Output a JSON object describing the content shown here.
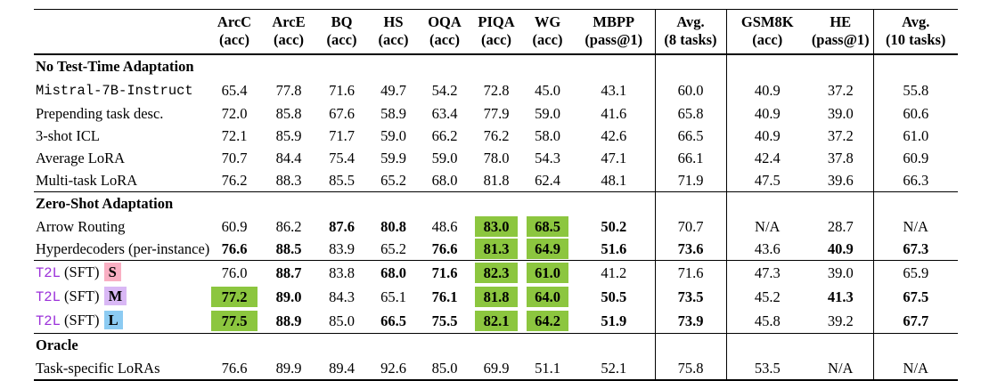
{
  "colors": {
    "highlight_green": "#8CC63F",
    "t2l_accent": "#9B30D9",
    "badge_s_bg": "#F9AFC3",
    "badge_m_bg": "#D9B8F5",
    "badge_l_bg": "#8CCBF2",
    "rule": "#000000"
  },
  "header": {
    "columns": [
      {
        "label": "ArcC",
        "sub": "(acc)"
      },
      {
        "label": "ArcE",
        "sub": "(acc)"
      },
      {
        "label": "BQ",
        "sub": "(acc)"
      },
      {
        "label": "HS",
        "sub": "(acc)"
      },
      {
        "label": "OQA",
        "sub": "(acc)"
      },
      {
        "label": "PIQA",
        "sub": "(acc)"
      },
      {
        "label": "WG",
        "sub": "(acc)"
      },
      {
        "label": "MBPP",
        "sub": "(pass@1)"
      },
      {
        "label": "Avg.",
        "sub": "(8 tasks)",
        "sep_left": true
      },
      {
        "label": "GSM8K",
        "sub": "(acc)",
        "sep_left": true
      },
      {
        "label": "HE",
        "sub": "(pass@1)"
      },
      {
        "label": "Avg.",
        "sub": "(10 tasks)",
        "sep_left": true
      }
    ]
  },
  "cell_style_legend": {
    "b": "bold",
    "hl": "green-highlight-bold"
  },
  "groups": [
    {
      "header": "No Test-Time Adaptation",
      "rows": [
        {
          "label": {
            "text": "Mistral-7B-Instruct",
            "mono": true
          },
          "cells": [
            [
              "65.4"
            ],
            [
              "77.8"
            ],
            [
              "71.6"
            ],
            [
              "49.7"
            ],
            [
              "54.2"
            ],
            [
              "72.8"
            ],
            [
              "45.0"
            ],
            [
              "43.1"
            ],
            [
              "60.0"
            ],
            [
              "40.9"
            ],
            [
              "37.2"
            ],
            [
              "55.8"
            ]
          ]
        },
        {
          "label": {
            "text": "Prepending task desc."
          },
          "cells": [
            [
              "72.0"
            ],
            [
              "85.8"
            ],
            [
              "67.6"
            ],
            [
              "58.9"
            ],
            [
              "63.4"
            ],
            [
              "77.9"
            ],
            [
              "59.0"
            ],
            [
              "41.6"
            ],
            [
              "65.8"
            ],
            [
              "40.9"
            ],
            [
              "39.0"
            ],
            [
              "60.6"
            ]
          ]
        },
        {
          "label": {
            "text": "3-shot ICL"
          },
          "cells": [
            [
              "72.1"
            ],
            [
              "85.9"
            ],
            [
              "71.7"
            ],
            [
              "59.0"
            ],
            [
              "66.2"
            ],
            [
              "76.2"
            ],
            [
              "58.0"
            ],
            [
              "42.6"
            ],
            [
              "66.5"
            ],
            [
              "40.9"
            ],
            [
              "37.2"
            ],
            [
              "61.0"
            ]
          ]
        },
        {
          "label": {
            "text": "Average LoRA"
          },
          "cells": [
            [
              "70.7"
            ],
            [
              "84.4"
            ],
            [
              "75.4"
            ],
            [
              "59.9"
            ],
            [
              "59.0"
            ],
            [
              "78.0"
            ],
            [
              "54.3"
            ],
            [
              "47.1"
            ],
            [
              "66.1"
            ],
            [
              "42.4"
            ],
            [
              "37.8"
            ],
            [
              "60.9"
            ]
          ]
        },
        {
          "label": {
            "text": "Multi-task LoRA"
          },
          "cells": [
            [
              "76.2"
            ],
            [
              "88.3"
            ],
            [
              "85.5"
            ],
            [
              "65.2"
            ],
            [
              "68.0"
            ],
            [
              "81.8"
            ],
            [
              "62.4"
            ],
            [
              "48.1"
            ],
            [
              "71.9"
            ],
            [
              "47.5"
            ],
            [
              "39.6"
            ],
            [
              "66.3"
            ]
          ]
        }
      ]
    },
    {
      "header": "Zero-Shot Adaptation",
      "rows": [
        {
          "label": {
            "text": "Arrow Routing"
          },
          "cells": [
            [
              "60.9"
            ],
            [
              "86.2"
            ],
            [
              "87.6",
              "b"
            ],
            [
              "80.8",
              "b"
            ],
            [
              "48.6"
            ],
            [
              "83.0",
              "hl"
            ],
            [
              "68.5",
              "hl"
            ],
            [
              "50.2",
              "b"
            ],
            [
              "70.7"
            ],
            [
              "N/A"
            ],
            [
              "28.7"
            ],
            [
              "N/A"
            ]
          ]
        },
        {
          "label": {
            "text": "Hyperdecoders (per-instance)"
          },
          "cells": [
            [
              "76.6",
              "b"
            ],
            [
              "88.5",
              "b"
            ],
            [
              "83.9"
            ],
            [
              "65.2"
            ],
            [
              "76.6",
              "b"
            ],
            [
              "81.3",
              "hl"
            ],
            [
              "64.9",
              "hl"
            ],
            [
              "51.6",
              "b"
            ],
            [
              "73.6",
              "b"
            ],
            [
              "43.6"
            ],
            [
              "40.9",
              "b"
            ],
            [
              "67.3",
              "b"
            ]
          ]
        }
      ]
    },
    {
      "header": null,
      "rows": [
        {
          "label": {
            "parts": [
              {
                "t": "T2L",
                "k": "t2l"
              },
              {
                "t": " (SFT) ",
                "k": "plain"
              },
              {
                "t": "S",
                "k": "badge",
                "badge": "s"
              }
            ]
          },
          "cells": [
            [
              "76.0"
            ],
            [
              "88.7",
              "b"
            ],
            [
              "83.8"
            ],
            [
              "68.0",
              "b"
            ],
            [
              "71.6",
              "b"
            ],
            [
              "82.3",
              "hl"
            ],
            [
              "61.0",
              "hl"
            ],
            [
              "41.2"
            ],
            [
              "71.6"
            ],
            [
              "47.3"
            ],
            [
              "39.0"
            ],
            [
              "65.9"
            ]
          ]
        },
        {
          "label": {
            "parts": [
              {
                "t": "T2L",
                "k": "t2l"
              },
              {
                "t": " (SFT) ",
                "k": "plain"
              },
              {
                "t": "M",
                "k": "badge",
                "badge": "m"
              }
            ]
          },
          "cells": [
            [
              "77.2",
              "hl"
            ],
            [
              "89.0",
              "b"
            ],
            [
              "84.3"
            ],
            [
              "65.1"
            ],
            [
              "76.1",
              "b"
            ],
            [
              "81.8",
              "hl"
            ],
            [
              "64.0",
              "hl"
            ],
            [
              "50.5",
              "b"
            ],
            [
              "73.5",
              "b"
            ],
            [
              "45.2"
            ],
            [
              "41.3",
              "b"
            ],
            [
              "67.5",
              "b"
            ]
          ]
        },
        {
          "label": {
            "parts": [
              {
                "t": "T2L",
                "k": "t2l"
              },
              {
                "t": " (SFT) ",
                "k": "plain"
              },
              {
                "t": "L",
                "k": "badge",
                "badge": "l"
              }
            ]
          },
          "cells": [
            [
              "77.5",
              "hl"
            ],
            [
              "88.9",
              "b"
            ],
            [
              "85.0"
            ],
            [
              "66.5",
              "b"
            ],
            [
              "75.5",
              "b"
            ],
            [
              "82.1",
              "hl"
            ],
            [
              "64.2",
              "hl"
            ],
            [
              "51.9",
              "b"
            ],
            [
              "73.9",
              "b"
            ],
            [
              "45.8"
            ],
            [
              "39.2"
            ],
            [
              "67.7",
              "b"
            ]
          ]
        }
      ]
    },
    {
      "header": "Oracle",
      "rows": [
        {
          "label": {
            "text": "Task-specific LoRAs"
          },
          "cells": [
            [
              "76.6"
            ],
            [
              "89.9"
            ],
            [
              "89.4"
            ],
            [
              "92.6"
            ],
            [
              "85.0"
            ],
            [
              "69.9"
            ],
            [
              "51.1"
            ],
            [
              "52.1"
            ],
            [
              "75.8"
            ],
            [
              "53.5"
            ],
            [
              "N/A"
            ],
            [
              "N/A"
            ]
          ]
        }
      ]
    }
  ]
}
